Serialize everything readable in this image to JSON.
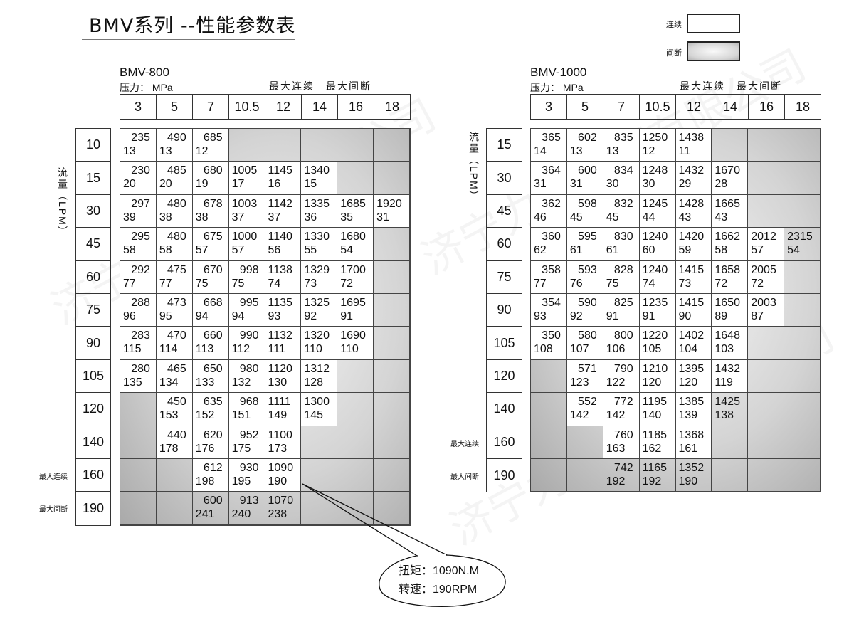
{
  "title": "BMV系列 --性能参数表",
  "watermark": "济宁力顿液压有限公司",
  "legend": {
    "continuous": "连续",
    "intermittent": "间断"
  },
  "colors": {
    "continuous": "#ffffff",
    "intermittent": "#c4c4c4"
  },
  "pressure_label": "压力： MPa",
  "max_continuous": "最大连续",
  "max_intermittent": "最大间断",
  "flow_axis_label": "流量（LPM）",
  "pressures": [
    "3",
    "5",
    "7",
    "10.5",
    "12",
    "14",
    "16",
    "18"
  ],
  "tables": [
    {
      "model": "BMV-800",
      "rows": [
        {
          "flow": "10",
          "cells": [
            [
              "235",
              "13"
            ],
            [
              "490",
              "13"
            ],
            [
              "685",
              "12"
            ],
            null,
            null,
            null,
            null,
            null
          ]
        },
        {
          "flow": "15",
          "cells": [
            [
              "230",
              "20"
            ],
            [
              "485",
              "20"
            ],
            [
              "680",
              "19"
            ],
            [
              "1005",
              "17"
            ],
            [
              "1145",
              "16"
            ],
            [
              "1340",
              "15"
            ],
            null,
            null
          ]
        },
        {
          "flow": "30",
          "cells": [
            [
              "297",
              "39"
            ],
            [
              "480",
              "38"
            ],
            [
              "678",
              "38"
            ],
            [
              "1003",
              "37"
            ],
            [
              "1142",
              "37"
            ],
            [
              "1335",
              "36"
            ],
            [
              "1685",
              "35"
            ],
            [
              "1920",
              "31"
            ]
          ]
        },
        {
          "flow": "45",
          "cells": [
            [
              "295",
              "58"
            ],
            [
              "480",
              "58"
            ],
            [
              "675",
              "57"
            ],
            [
              "1000",
              "57"
            ],
            [
              "1140",
              "56"
            ],
            [
              "1330",
              "55"
            ],
            [
              "1680",
              "54"
            ],
            null
          ]
        },
        {
          "flow": "60",
          "cells": [
            [
              "292",
              "77"
            ],
            [
              "475",
              "77"
            ],
            [
              "670",
              "75"
            ],
            [
              "998",
              "75"
            ],
            [
              "1138",
              "74"
            ],
            [
              "1329",
              "73"
            ],
            [
              "1700",
              "72"
            ],
            null
          ]
        },
        {
          "flow": "75",
          "cells": [
            [
              "288",
              "96"
            ],
            [
              "473",
              "95"
            ],
            [
              "668",
              "94"
            ],
            [
              "995",
              "94"
            ],
            [
              "1135",
              "93"
            ],
            [
              "1325",
              "92"
            ],
            [
              "1695",
              "91"
            ],
            null
          ]
        },
        {
          "flow": "90",
          "cells": [
            [
              "283",
              "115"
            ],
            [
              "470",
              "114"
            ],
            [
              "660",
              "113"
            ],
            [
              "990",
              "112"
            ],
            [
              "1132",
              "111"
            ],
            [
              "1320",
              "110"
            ],
            [
              "1690",
              "110"
            ],
            null
          ]
        },
        {
          "flow": "105",
          "cells": [
            [
              "280",
              "135"
            ],
            [
              "465",
              "134"
            ],
            [
              "650",
              "133"
            ],
            [
              "980",
              "132"
            ],
            [
              "1120",
              "130"
            ],
            [
              "1312",
              "128"
            ],
            null,
            null
          ]
        },
        {
          "flow": "120",
          "cells": [
            null,
            [
              "450",
              "153"
            ],
            [
              "635",
              "152"
            ],
            [
              "968",
              "151"
            ],
            [
              "1111",
              "149"
            ],
            [
              "1300",
              "145"
            ],
            null,
            null
          ]
        },
        {
          "flow": "140",
          "cells": [
            null,
            [
              "440",
              "178"
            ],
            [
              "620",
              "176"
            ],
            [
              "952",
              "175"
            ],
            [
              "1100",
              "173"
            ],
            null,
            null,
            null
          ]
        },
        {
          "flow": "160",
          "side": "max_continuous",
          "cells": [
            null,
            null,
            [
              "612",
              "198"
            ],
            [
              "930",
              "195"
            ],
            [
              "1090",
              "190"
            ],
            null,
            null,
            null
          ]
        },
        {
          "flow": "190",
          "side": "max_intermittent",
          "intermittent": [
            2,
            3,
            4
          ],
          "cells": [
            null,
            null,
            [
              "600",
              "241"
            ],
            [
              "913",
              "240"
            ],
            [
              "1070",
              "238"
            ],
            null,
            null,
            null
          ]
        }
      ]
    },
    {
      "model": "BMV-1000",
      "rows": [
        {
          "flow": "15",
          "cells": [
            [
              "365",
              "14"
            ],
            [
              "602",
              "13"
            ],
            [
              "835",
              "13"
            ],
            [
              "1250",
              "12"
            ],
            [
              "1438",
              "11"
            ],
            null,
            null,
            null
          ]
        },
        {
          "flow": "30",
          "cells": [
            [
              "364",
              "31"
            ],
            [
              "600",
              "31"
            ],
            [
              "834",
              "30"
            ],
            [
              "1248",
              "30"
            ],
            [
              "1432",
              "29"
            ],
            [
              "1670",
              "28"
            ],
            null,
            null
          ]
        },
        {
          "flow": "45",
          "cells": [
            [
              "362",
              "46"
            ],
            [
              "598",
              "45"
            ],
            [
              "832",
              "45"
            ],
            [
              "1245",
              "44"
            ],
            [
              "1428",
              "43"
            ],
            [
              "1665",
              "43"
            ],
            null,
            null
          ]
        },
        {
          "flow": "60",
          "intermittent": [
            7
          ],
          "cells": [
            [
              "360",
              "62"
            ],
            [
              "595",
              "61"
            ],
            [
              "830",
              "61"
            ],
            [
              "1240",
              "60"
            ],
            [
              "1420",
              "59"
            ],
            [
              "1662",
              "58"
            ],
            [
              "2012",
              "57"
            ],
            [
              "2315",
              "54"
            ]
          ]
        },
        {
          "flow": "75",
          "cells": [
            [
              "358",
              "77"
            ],
            [
              "593",
              "76"
            ],
            [
              "828",
              "75"
            ],
            [
              "1240",
              "74"
            ],
            [
              "1415",
              "73"
            ],
            [
              "1658",
              "72"
            ],
            [
              "2005",
              "72"
            ],
            null
          ]
        },
        {
          "flow": "90",
          "cells": [
            [
              "354",
              "93"
            ],
            [
              "590",
              "92"
            ],
            [
              "825",
              "91"
            ],
            [
              "1235",
              "91"
            ],
            [
              "1415",
              "90"
            ],
            [
              "1650",
              "89"
            ],
            [
              "2003",
              "87"
            ],
            null
          ]
        },
        {
          "flow": "105",
          "cells": [
            [
              "350",
              "108"
            ],
            [
              "580",
              "107"
            ],
            [
              "800",
              "106"
            ],
            [
              "1220",
              "105"
            ],
            [
              "1402",
              "104"
            ],
            [
              "1648",
              "103"
            ],
            null,
            null
          ]
        },
        {
          "flow": "120",
          "cells": [
            null,
            [
              "571",
              "123"
            ],
            [
              "790",
              "122"
            ],
            [
              "1210",
              "120"
            ],
            [
              "1395",
              "120"
            ],
            [
              "1432",
              "119"
            ],
            null,
            null
          ]
        },
        {
          "flow": "140",
          "intermittent": [
            5
          ],
          "cells": [
            null,
            [
              "552",
              "142"
            ],
            [
              "772",
              "142"
            ],
            [
              "1195",
              "140"
            ],
            [
              "1385",
              "139"
            ],
            [
              "1425",
              "138"
            ],
            null,
            null
          ]
        },
        {
          "flow": "160",
          "side": "max_continuous",
          "cells": [
            null,
            null,
            [
              "760",
              "163"
            ],
            [
              "1185",
              "162"
            ],
            [
              "1368",
              "161"
            ],
            null,
            null,
            null
          ]
        },
        {
          "flow": "190",
          "side": "max_intermittent",
          "intermittent": [
            2,
            3,
            4
          ],
          "cells": [
            null,
            null,
            [
              "742",
              "192"
            ],
            [
              "1165",
              "192"
            ],
            [
              "1352",
              "190"
            ],
            null,
            null,
            null
          ]
        }
      ]
    }
  ],
  "callout": {
    "torque": "扭矩：1090N.M",
    "speed": "转速：190RPM"
  }
}
